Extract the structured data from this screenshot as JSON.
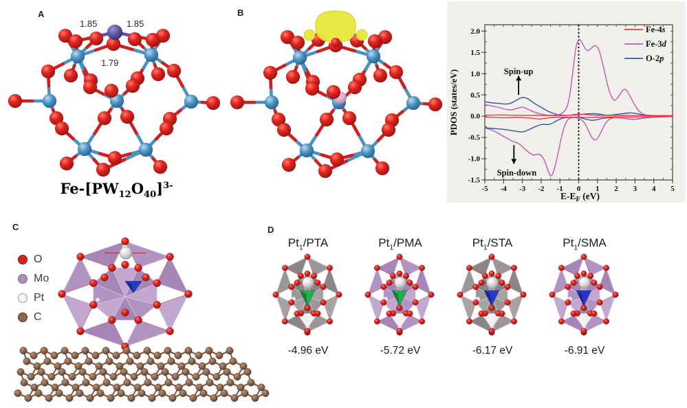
{
  "panels": {
    "a": {
      "label": "A",
      "caption": {
        "p1": "Fe-[PW",
        "sub1": "12",
        "p2": "O",
        "sub2": "40",
        "p3": "]",
        "sup": "3-"
      },
      "bond_labels": [
        "1.85",
        "1.85",
        "1.79"
      ]
    },
    "b": {
      "label": "B"
    },
    "c": {
      "label": "C",
      "legend": [
        {
          "label": "O",
          "color": "#d42220",
          "ring": "#8d1210"
        },
        {
          "label": "Mo",
          "color": "#a98fbc",
          "ring": "#7c5f92"
        },
        {
          "label": "Pt",
          "color": "#f5f5f5",
          "ring": "#9a9a9a"
        },
        {
          "label": "C",
          "color": "#8a6550",
          "ring": "#4f3426"
        }
      ]
    },
    "d": {
      "label": "D",
      "items": [
        {
          "title": {
            "prefix": "Pt",
            "sub": "1",
            "suffix": "/PTA"
          },
          "energy": "-4.96 eV",
          "poly": "gray",
          "center": "green"
        },
        {
          "title": {
            "prefix": "Pt",
            "sub": "1",
            "suffix": "/PMA"
          },
          "energy": "-5.72 eV",
          "poly": "purple",
          "center": "green"
        },
        {
          "title": {
            "prefix": "Pt",
            "sub": "1",
            "suffix": "/STA"
          },
          "energy": "-6.17 eV",
          "poly": "gray",
          "center": "blue"
        },
        {
          "title": {
            "prefix": "Pt",
            "sub": "1",
            "suffix": "/SMA"
          },
          "energy": "-6.91 eV",
          "poly": "purple",
          "center": "blue"
        }
      ]
    }
  },
  "colors": {
    "o": "#d42220",
    "w": "#4a92c4",
    "fe": "#5a55a0",
    "p_center": "#d9a8cc",
    "spin_density": "#e9e93e",
    "carbon": "#8a6550",
    "pt": "#d9d9d9",
    "poly_gray": [
      "#9b9799",
      "#8a8688",
      "#a7a3a5"
    ],
    "poly_purple": [
      "#b294c2",
      "#a586b6",
      "#c2a7cf"
    ],
    "tetra_green": "#21b14b",
    "tetra_blue": "#2638c9",
    "tetra_white": "#f2f0f1",
    "chart_bg": "#f2f0ed"
  },
  "chart_data": {
    "type": "line",
    "ylabel": "PDOS (states/eV)",
    "xlabel_parts": {
      "main": "E-E",
      "sub": "F",
      "tail": " (eV)"
    },
    "xlim": [
      -5,
      5
    ],
    "ylim": [
      -1.5,
      2.15
    ],
    "x_minor_step": 0.5,
    "y_minor_step": 0.25,
    "zero_line_x": 0,
    "legend_position": "top-right",
    "grid": false,
    "xticks": [
      {
        "v": -5,
        "label": "-5"
      },
      {
        "v": -4,
        "label": "-4"
      },
      {
        "v": -3,
        "label": "-3"
      },
      {
        "v": -2,
        "label": "-2"
      },
      {
        "v": -1,
        "label": "-1"
      },
      {
        "v": 0,
        "label": "0"
      },
      {
        "v": 1,
        "label": "1"
      },
      {
        "v": 2,
        "label": "2"
      },
      {
        "v": 3,
        "label": "3"
      },
      {
        "v": 4,
        "label": "4"
      },
      {
        "v": 5,
        "label": "5"
      }
    ],
    "yticks": [
      {
        "v": 2.0,
        "label": "2.0"
      },
      {
        "v": 1.5,
        "label": "1.5"
      },
      {
        "v": 1.0,
        "label": "1.0"
      },
      {
        "v": 0.5,
        "label": "0.5"
      },
      {
        "v": 0.0,
        "label": "0.0"
      },
      {
        "v": -0.5,
        "label": "-0.5"
      },
      {
        "v": -1.0,
        "label": "-1.0"
      },
      {
        "v": -1.5,
        "label": "-1.5"
      }
    ],
    "legend": [
      {
        "main": "Fe-4",
        "italic": "s",
        "color": "#ef3a3e"
      },
      {
        "main": "Fe-3",
        "italic": "d",
        "color": "#c05ca8"
      },
      {
        "main": "O-2",
        "italic": "p",
        "color": "#2f55a6"
      }
    ],
    "annotations": [
      {
        "text": "Spin-up",
        "x": -3.2,
        "y": 1.05,
        "arrow": {
          "x": -3.2,
          "from": 0.5,
          "to": 0.95,
          "dir": "up"
        }
      },
      {
        "text": "Spin-down",
        "x": -3.3,
        "y": -1.33,
        "arrow": {
          "x": -3.45,
          "from": -0.68,
          "to": -1.12,
          "dir": "down"
        }
      }
    ],
    "series": [
      {
        "name": "O-2p",
        "color": "#2f55a6",
        "up": [
          [
            -5,
            0.34
          ],
          [
            -4.6,
            0.31
          ],
          [
            -4.2,
            0.3
          ],
          [
            -3.9,
            0.28
          ],
          [
            -3.6,
            0.3
          ],
          [
            -3.3,
            0.38
          ],
          [
            -3.0,
            0.45
          ],
          [
            -2.8,
            0.43
          ],
          [
            -2.6,
            0.38
          ],
          [
            -2.3,
            0.28
          ],
          [
            -2.0,
            0.21
          ],
          [
            -1.7,
            0.13
          ],
          [
            -1.4,
            0.07
          ],
          [
            -1.1,
            0.03
          ],
          [
            -0.8,
            0.02
          ],
          [
            -0.5,
            0.02
          ],
          [
            -0.2,
            0.03
          ],
          [
            0,
            0.03
          ],
          [
            0.3,
            0.05
          ],
          [
            0.6,
            0.06
          ],
          [
            0.9,
            0.06
          ],
          [
            1.2,
            0.04
          ],
          [
            1.5,
            0.02
          ],
          [
            1.8,
            0.03
          ],
          [
            2.2,
            0.05
          ],
          [
            2.5,
            0.07
          ],
          [
            2.8,
            0.08
          ],
          [
            3.1,
            0.06
          ],
          [
            3.4,
            0.03
          ],
          [
            3.8,
            0.02
          ],
          [
            4.2,
            0.01
          ],
          [
            5,
            0.01
          ]
        ],
        "down": [
          [
            -5,
            -0.27
          ],
          [
            -4.6,
            -0.29
          ],
          [
            -4.2,
            -0.3
          ],
          [
            -3.8,
            -0.32
          ],
          [
            -3.4,
            -0.35
          ],
          [
            -3.0,
            -0.38
          ],
          [
            -2.7,
            -0.33
          ],
          [
            -2.4,
            -0.26
          ],
          [
            -2.1,
            -0.21
          ],
          [
            -1.9,
            -0.19
          ],
          [
            -1.7,
            -0.2
          ],
          [
            -1.5,
            -0.19
          ],
          [
            -1.3,
            -0.14
          ],
          [
            -1.1,
            -0.09
          ],
          [
            -0.9,
            -0.05
          ],
          [
            -0.6,
            -0.03
          ],
          [
            -0.3,
            -0.02
          ],
          [
            0,
            -0.02
          ],
          [
            0.3,
            -0.06
          ],
          [
            0.55,
            -0.09
          ],
          [
            0.8,
            -0.1
          ],
          [
            1.1,
            -0.07
          ],
          [
            1.4,
            -0.04
          ],
          [
            1.8,
            -0.03
          ],
          [
            2.2,
            -0.04
          ],
          [
            2.6,
            -0.06
          ],
          [
            3.0,
            -0.08
          ],
          [
            3.4,
            -0.05
          ],
          [
            3.8,
            -0.03
          ],
          [
            4.2,
            -0.02
          ],
          [
            5,
            -0.01
          ]
        ]
      },
      {
        "name": "Fe-3d",
        "color": "#c05ca8",
        "up": [
          [
            -5,
            0.27
          ],
          [
            -4.6,
            0.24
          ],
          [
            -4.2,
            0.2
          ],
          [
            -3.9,
            0.16
          ],
          [
            -3.6,
            0.14
          ],
          [
            -3.3,
            0.18
          ],
          [
            -3.0,
            0.22
          ],
          [
            -2.8,
            0.18
          ],
          [
            -2.5,
            0.12
          ],
          [
            -2.2,
            0.07
          ],
          [
            -1.9,
            0.04
          ],
          [
            -1.6,
            0.02
          ],
          [
            -1.3,
            0.02
          ],
          [
            -1.0,
            0.04
          ],
          [
            -0.8,
            0.09
          ],
          [
            -0.6,
            0.22
          ],
          [
            -0.45,
            0.55
          ],
          [
            -0.3,
            1.1
          ],
          [
            -0.15,
            1.65
          ],
          [
            0,
            1.83
          ],
          [
            0.15,
            1.76
          ],
          [
            0.3,
            1.62
          ],
          [
            0.45,
            1.53
          ],
          [
            0.6,
            1.56
          ],
          [
            0.75,
            1.64
          ],
          [
            0.9,
            1.67
          ],
          [
            1.05,
            1.6
          ],
          [
            1.2,
            1.38
          ],
          [
            1.4,
            1.0
          ],
          [
            1.6,
            0.62
          ],
          [
            1.8,
            0.4
          ],
          [
            1.95,
            0.36
          ],
          [
            2.1,
            0.45
          ],
          [
            2.3,
            0.58
          ],
          [
            2.45,
            0.65
          ],
          [
            2.6,
            0.58
          ],
          [
            2.8,
            0.42
          ],
          [
            3.0,
            0.25
          ],
          [
            3.2,
            0.12
          ],
          [
            3.4,
            0.05
          ],
          [
            3.7,
            0.02
          ],
          [
            4.0,
            0.01
          ],
          [
            4.5,
            0.01
          ],
          [
            5,
            0.01
          ]
        ],
        "down": [
          [
            -5,
            -0.28
          ],
          [
            -4.7,
            -0.31
          ],
          [
            -4.4,
            -0.37
          ],
          [
            -4.1,
            -0.45
          ],
          [
            -3.8,
            -0.52
          ],
          [
            -3.5,
            -0.6
          ],
          [
            -3.3,
            -0.62
          ],
          [
            -3.1,
            -0.67
          ],
          [
            -2.9,
            -0.76
          ],
          [
            -2.7,
            -0.84
          ],
          [
            -2.5,
            -0.9
          ],
          [
            -2.35,
            -0.92
          ],
          [
            -2.2,
            -0.89
          ],
          [
            -2.05,
            -0.9
          ],
          [
            -1.9,
            -0.97
          ],
          [
            -1.75,
            -1.12
          ],
          [
            -1.6,
            -1.32
          ],
          [
            -1.5,
            -1.42
          ],
          [
            -1.4,
            -1.38
          ],
          [
            -1.25,
            -1.18
          ],
          [
            -1.1,
            -0.88
          ],
          [
            -0.95,
            -0.55
          ],
          [
            -0.8,
            -0.28
          ],
          [
            -0.65,
            -0.12
          ],
          [
            -0.5,
            -0.05
          ],
          [
            -0.3,
            -0.03
          ],
          [
            -0.1,
            -0.04
          ],
          [
            0.05,
            -0.06
          ],
          [
            0.2,
            -0.1
          ],
          [
            0.4,
            -0.22
          ],
          [
            0.6,
            -0.42
          ],
          [
            0.75,
            -0.54
          ],
          [
            0.9,
            -0.57
          ],
          [
            1.05,
            -0.5
          ],
          [
            1.2,
            -0.36
          ],
          [
            1.4,
            -0.18
          ],
          [
            1.6,
            -0.08
          ],
          [
            1.8,
            -0.04
          ],
          [
            2.1,
            -0.03
          ],
          [
            2.4,
            -0.05
          ],
          [
            2.7,
            -0.07
          ],
          [
            3.0,
            -0.08
          ],
          [
            3.3,
            -0.05
          ],
          [
            3.6,
            -0.03
          ],
          [
            4.0,
            -0.02
          ],
          [
            4.5,
            -0.01
          ],
          [
            5,
            -0.01
          ]
        ]
      },
      {
        "name": "Fe-4s",
        "color": "#ef3a3e",
        "up": [
          [
            -5,
            0.02
          ],
          [
            -4.5,
            0.025
          ],
          [
            -4,
            0.03
          ],
          [
            -3.5,
            0.02
          ],
          [
            -3,
            0.02
          ],
          [
            -2.5,
            0.02
          ],
          [
            -2,
            0.015
          ],
          [
            -1.5,
            0.015
          ],
          [
            -1,
            0.01
          ],
          [
            -0.5,
            0.02
          ],
          [
            -0.2,
            0.04
          ],
          [
            0,
            0.05
          ],
          [
            0.3,
            0.04
          ],
          [
            0.6,
            0.03
          ],
          [
            1,
            0.02
          ],
          [
            1.5,
            0.02
          ],
          [
            2,
            0.02
          ],
          [
            2.5,
            0.015
          ],
          [
            3,
            0.015
          ],
          [
            3.5,
            0.01
          ],
          [
            4,
            0.01
          ],
          [
            5,
            0.01
          ]
        ],
        "down": [
          [
            -5,
            -0.02
          ],
          [
            -4.5,
            -0.03
          ],
          [
            -4,
            -0.04
          ],
          [
            -3.6,
            -0.03
          ],
          [
            -3.2,
            -0.03
          ],
          [
            -2.8,
            -0.04
          ],
          [
            -2.4,
            -0.05
          ],
          [
            -2.1,
            -0.07
          ],
          [
            -1.9,
            -0.06
          ],
          [
            -1.6,
            -0.04
          ],
          [
            -1.3,
            -0.03
          ],
          [
            -1,
            -0.03
          ],
          [
            -0.6,
            -0.02
          ],
          [
            -0.2,
            -0.02
          ],
          [
            0,
            -0.02
          ],
          [
            0.4,
            -0.03
          ],
          [
            0.8,
            -0.03
          ],
          [
            1.2,
            -0.02
          ],
          [
            1.6,
            -0.02
          ],
          [
            2,
            -0.015
          ],
          [
            2.5,
            -0.02
          ],
          [
            3,
            -0.02
          ],
          [
            3.5,
            -0.015
          ],
          [
            4,
            -0.01
          ],
          [
            5,
            -0.01
          ]
        ]
      }
    ]
  }
}
